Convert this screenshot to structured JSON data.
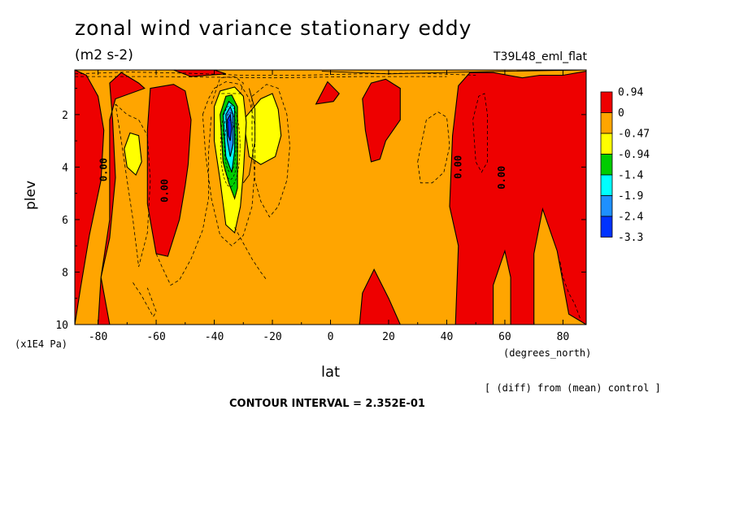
{
  "header": {
    "title": "zonal wind variance stationary eddy",
    "units": "(m2 s-2)",
    "run": "T39L48_eml_flat"
  },
  "footer": {
    "note": "[ (diff) from (mean) control ]",
    "contour_interval": "CONTOUR INTERVAL = 2.352E-01"
  },
  "chart_data": {
    "type": "heatmap",
    "title": "zonal wind variance stationary eddy",
    "units": "(m2 s-2)",
    "xlabel": "lat",
    "xunit": "(degrees_north)",
    "ylabel": "plev",
    "yunit": "(x1E4 Pa)",
    "xlim": [
      -88,
      88
    ],
    "ylim": [
      10,
      0.3
    ],
    "xticks": [
      -80,
      -60,
      -40,
      -20,
      0,
      20,
      40,
      60,
      80
    ],
    "yticks": [
      2,
      4,
      6,
      8,
      10
    ],
    "contour_interval": 0.2352,
    "contour_labels": [
      {
        "text": "0.00",
        "lat": -77,
        "plev": 4.1
      },
      {
        "text": "0.00",
        "lat": -56,
        "plev": 4.9
      },
      {
        "text": "0.00",
        "lat": 45,
        "plev": 4.0
      },
      {
        "text": "0.00",
        "lat": 60,
        "plev": 4.4
      }
    ],
    "colorbar": {
      "labels": [
        "0.94",
        "0",
        "-0.47",
        "-0.94",
        "-1.4",
        "-1.9",
        "-2.4",
        "-3.3"
      ],
      "colors": [
        "#ee0000",
        "#ffa500",
        "#ffff00",
        "#00cc00",
        "#00ffff",
        "#1e90ff",
        "#0033ff"
      ]
    },
    "regions": [
      {
        "level": "above 0",
        "color": "#ee0000",
        "polygon": [
          [
            -88,
            10
          ],
          [
            -88,
            0.3
          ],
          [
            -84,
            0.5
          ],
          [
            -80,
            1.3
          ],
          [
            -78,
            2.6
          ],
          [
            -79,
            4.5
          ],
          [
            -83,
            6.6
          ],
          [
            -86,
            8.6
          ],
          [
            -88,
            10
          ]
        ]
      },
      {
        "level": "above 0",
        "color": "#ee0000",
        "polygon": [
          [
            -80,
            10
          ],
          [
            -79,
            8.2
          ],
          [
            -76,
            6.7
          ],
          [
            -74,
            4.4
          ],
          [
            -75,
            2.2
          ],
          [
            -76,
            0.8
          ],
          [
            -72,
            0.4
          ],
          [
            -66,
            0.8
          ],
          [
            -64,
            1.0
          ],
          [
            -74,
            1.4
          ],
          [
            -76,
            2.2
          ],
          [
            -76,
            6.0
          ],
          [
            -79,
            8.2
          ],
          [
            -76,
            10
          ]
        ]
      },
      {
        "level": "above 0",
        "color": "#ee0000",
        "polygon": [
          [
            -62,
            1.0
          ],
          [
            -54,
            0.85
          ],
          [
            -50,
            1.1
          ],
          [
            -48,
            2.2
          ],
          [
            -49,
            3.9
          ],
          [
            -50,
            4.7
          ],
          [
            -52,
            6.0
          ],
          [
            -56,
            7.4
          ],
          [
            -60,
            7.3
          ],
          [
            -63,
            5.4
          ],
          [
            -63,
            2.6
          ]
        ]
      },
      {
        "level": "above 0",
        "color": "#ee0000",
        "polygon": [
          [
            -5,
            1.6
          ],
          [
            -1,
            0.75
          ],
          [
            3,
            1.2
          ],
          [
            1,
            1.5
          ]
        ]
      },
      {
        "level": "above 0",
        "color": "#ee0000",
        "polygon": [
          [
            11,
            1.4
          ],
          [
            14,
            0.8
          ],
          [
            19,
            0.65
          ],
          [
            24,
            1.0
          ],
          [
            24,
            2.2
          ],
          [
            19,
            3.0
          ],
          [
            17,
            3.7
          ],
          [
            14,
            3.8
          ],
          [
            12,
            2.6
          ]
        ]
      },
      {
        "level": "above 0",
        "color": "#ee0000",
        "polygon": [
          [
            10,
            10
          ],
          [
            11,
            8.8
          ],
          [
            15,
            7.9
          ],
          [
            20,
            9.0
          ],
          [
            24,
            10
          ]
        ]
      },
      {
        "level": "above 0",
        "color": "#ee0000",
        "polygon": [
          [
            43,
            10
          ],
          [
            44,
            7.0
          ],
          [
            41,
            5.5
          ],
          [
            42,
            2.8
          ],
          [
            44,
            0.9
          ],
          [
            48,
            0.4
          ],
          [
            56,
            0.4
          ],
          [
            66,
            0.6
          ],
          [
            72,
            0.5
          ],
          [
            80,
            0.5
          ],
          [
            88,
            0.35
          ],
          [
            88,
            10
          ],
          [
            82,
            9.6
          ],
          [
            78,
            7.2
          ],
          [
            73,
            5.6
          ],
          [
            70,
            7.3
          ],
          [
            70,
            10
          ],
          [
            62,
            10
          ],
          [
            62,
            8.2
          ],
          [
            60,
            7.2
          ],
          [
            56,
            8.5
          ],
          [
            56,
            10
          ]
        ]
      },
      {
        "level": "above 0",
        "color": "#ee0000",
        "polygon": [
          [
            -54,
            0.3
          ],
          [
            -40,
            0.3
          ],
          [
            -36,
            0.45
          ],
          [
            -48,
            0.55
          ]
        ]
      },
      {
        "level": "-0.47 to -0.94",
        "color": "#ffff00",
        "polygon": [
          [
            -71,
            3.3
          ],
          [
            -69,
            2.7
          ],
          [
            -66,
            2.8
          ],
          [
            -65,
            3.8
          ],
          [
            -67,
            4.3
          ],
          [
            -70,
            4.0
          ]
        ]
      },
      {
        "level": "-0.47 to -0.94",
        "color": "#ffff00",
        "polygon": [
          [
            -30,
            2.2
          ],
          [
            -24,
            1.4
          ],
          [
            -20,
            1.2
          ],
          [
            -18,
            1.8
          ],
          [
            -17,
            2.8
          ],
          [
            -19,
            3.6
          ],
          [
            -24,
            3.9
          ],
          [
            -28,
            3.6
          ]
        ]
      },
      {
        "level": "-0.47 to -0.94",
        "color": "#ffff00",
        "polygon": [
          [
            -40,
            1.7
          ],
          [
            -38,
            1.1
          ],
          [
            -33,
            0.95
          ],
          [
            -30,
            1.3
          ],
          [
            -29,
            2.3
          ],
          [
            -30,
            4.2
          ],
          [
            -31,
            5.5
          ],
          [
            -33,
            6.5
          ],
          [
            -36,
            6.2
          ],
          [
            -38,
            4.5
          ],
          [
            -40,
            3.0
          ]
        ]
      },
      {
        "level": "-0.94 to -1.4",
        "color": "#00cc00",
        "polygon": [
          [
            -38,
            2.0
          ],
          [
            -36,
            1.3
          ],
          [
            -34,
            1.25
          ],
          [
            -32,
            1.7
          ],
          [
            -32,
            3.5
          ],
          [
            -32,
            4.8
          ],
          [
            -33,
            5.2
          ],
          [
            -35,
            4.6
          ],
          [
            -37,
            3.8
          ]
        ]
      },
      {
        "level": "-1.4 to -1.9",
        "color": "#00ffff",
        "polygon": [
          [
            -37,
            2.0
          ],
          [
            -35,
            1.5
          ],
          [
            -33,
            1.7
          ],
          [
            -33,
            3.4
          ],
          [
            -34,
            4.2
          ],
          [
            -36,
            3.6
          ]
        ]
      },
      {
        "level": "-1.9 to -2.4",
        "color": "#1e90ff",
        "polygon": [
          [
            -36,
            2.0
          ],
          [
            -34.5,
            1.7
          ],
          [
            -33.5,
            2.0
          ],
          [
            -33.5,
            3.1
          ],
          [
            -34.5,
            3.6
          ],
          [
            -35.5,
            3.0
          ]
        ]
      },
      {
        "level": "-2.4 to -3.3",
        "color": "#0033ff",
        "polygon": [
          [
            -35.5,
            2.2
          ],
          [
            -34.5,
            2.0
          ],
          [
            -34,
            2.5
          ],
          [
            -34.5,
            3.0
          ],
          [
            -35.2,
            2.8
          ]
        ]
      }
    ],
    "dashed_contours": [
      [
        [
          -74,
          1.6
        ],
        [
          -70,
          2.0
        ],
        [
          -66,
          2.2
        ],
        [
          -63,
          2.8
        ],
        [
          -62,
          4.5
        ],
        [
          -63,
          6.5
        ],
        [
          -66,
          7.8
        ],
        [
          -68,
          6.0
        ],
        [
          -70,
          4.5
        ],
        [
          -72,
          3.0
        ],
        [
          -74,
          1.6
        ]
      ],
      [
        [
          -60,
          7.3
        ],
        [
          -58,
          7.8
        ],
        [
          -55,
          8.5
        ],
        [
          -52,
          8.3
        ],
        [
          -48,
          7.5
        ],
        [
          -44,
          6.4
        ],
        [
          -42,
          5.2
        ],
        [
          -42,
          3.5
        ],
        [
          -41,
          2.0
        ]
      ],
      [
        [
          -68,
          8.4
        ],
        [
          -65,
          8.9
        ],
        [
          -61,
          9.7
        ],
        [
          -60,
          9.5
        ],
        [
          -63,
          8.6
        ]
      ],
      [
        [
          -41,
          1.6
        ],
        [
          -38,
          0.6
        ],
        [
          -33,
          0.55
        ],
        [
          -30,
          0.8
        ],
        [
          -31,
          1.2
        ],
        [
          -38,
          1.2
        ]
      ],
      [
        [
          -44,
          2.0
        ],
        [
          -42,
          1.4
        ],
        [
          -40,
          1.0
        ],
        [
          -36,
          0.75
        ],
        [
          -31,
          0.85
        ],
        [
          -28,
          1.4
        ],
        [
          -26,
          2.4
        ],
        [
          -26,
          4.0
        ],
        [
          -27,
          5.5
        ],
        [
          -30,
          6.6
        ],
        [
          -34,
          7.0
        ],
        [
          -38,
          6.6
        ],
        [
          -41,
          5.2
        ],
        [
          -43,
          3.5
        ],
        [
          -44,
          2.0
        ]
      ],
      [
        [
          -27,
          1.3
        ],
        [
          -22,
          0.85
        ],
        [
          -18,
          1.0
        ],
        [
          -15,
          2.0
        ],
        [
          -14,
          3.2
        ],
        [
          -15,
          4.5
        ],
        [
          -18,
          5.5
        ],
        [
          -21,
          5.9
        ],
        [
          -24,
          5.3
        ],
        [
          -26,
          4.5
        ],
        [
          -27,
          3.0
        ],
        [
          -27,
          1.3
        ]
      ],
      [
        [
          -33,
          6.3
        ],
        [
          -30,
          6.9
        ],
        [
          -27,
          7.5
        ],
        [
          -24,
          8.0
        ],
        [
          -22,
          8.3
        ]
      ],
      [
        [
          30,
          3.8
        ],
        [
          33,
          2.2
        ],
        [
          37,
          1.9
        ],
        [
          40,
          2.1
        ],
        [
          41,
          3.2
        ],
        [
          39,
          4.2
        ],
        [
          35,
          4.6
        ],
        [
          31,
          4.6
        ],
        [
          30,
          3.8
        ]
      ],
      [
        [
          49,
          2.2
        ],
        [
          51,
          1.3
        ],
        [
          53,
          1.2
        ],
        [
          54,
          2.0
        ],
        [
          54,
          3.8
        ],
        [
          52,
          4.2
        ],
        [
          50,
          3.8
        ],
        [
          49,
          2.2
        ]
      ],
      [
        [
          79,
          7.6
        ],
        [
          80,
          8.2
        ],
        [
          82,
          8.8
        ],
        [
          84,
          9.2
        ],
        [
          86,
          9.8
        ]
      ],
      [
        [
          -88,
          0.45
        ],
        [
          -70,
          0.38
        ],
        [
          -50,
          0.42
        ],
        [
          -30,
          0.5
        ],
        [
          -10,
          0.5
        ],
        [
          10,
          0.45
        ],
        [
          30,
          0.42
        ],
        [
          50,
          0.5
        ]
      ],
      [
        [
          -88,
          0.55
        ],
        [
          -60,
          0.55
        ],
        [
          -20,
          0.6
        ],
        [
          10,
          0.55
        ],
        [
          40,
          0.55
        ]
      ]
    ],
    "solid_contours": [
      [
        [
          -28,
          1.0
        ],
        [
          -26,
          1.8
        ],
        [
          -26,
          3.0
        ],
        [
          -28,
          4.3
        ],
        [
          -30,
          4.6
        ]
      ],
      [
        [
          -3,
          0.35
        ],
        [
          20,
          0.45
        ],
        [
          40,
          0.4
        ],
        [
          60,
          0.35
        ],
        [
          88,
          0.3
        ]
      ]
    ]
  }
}
